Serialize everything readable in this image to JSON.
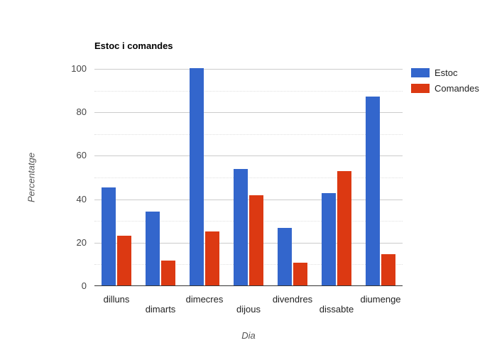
{
  "chart_data": {
    "type": "bar",
    "title": "Estoc i comandes",
    "xlabel": "Dia",
    "ylabel": "Percentatge",
    "categories": [
      "dilluns",
      "dimarts",
      "dimecres",
      "dijous",
      "divendres",
      "dissabte",
      "diumenge"
    ],
    "series": [
      {
        "name": "Estoc",
        "color": "#3366CC",
        "values": [
          45,
          34,
          100,
          53.5,
          26.5,
          42.5,
          87
        ]
      },
      {
        "name": "Comandes",
        "color": "#DC3912",
        "values": [
          23,
          11.5,
          25,
          41.5,
          10.5,
          52.5,
          14.5
        ]
      }
    ],
    "ylim": [
      0,
      100
    ],
    "yticks": [
      0,
      20,
      40,
      60,
      80,
      100
    ],
    "minor_yticks": [
      10,
      30,
      50,
      70,
      90
    ],
    "grid": true,
    "legend_position": "right",
    "colors": {
      "grid_major": "#cccccc",
      "grid_minor": "#e0e0e0",
      "baseline": "#333333",
      "tick_text": "#444444",
      "label_text": "#222222",
      "axis_title_text": "#555555",
      "background": "#ffffff"
    }
  }
}
